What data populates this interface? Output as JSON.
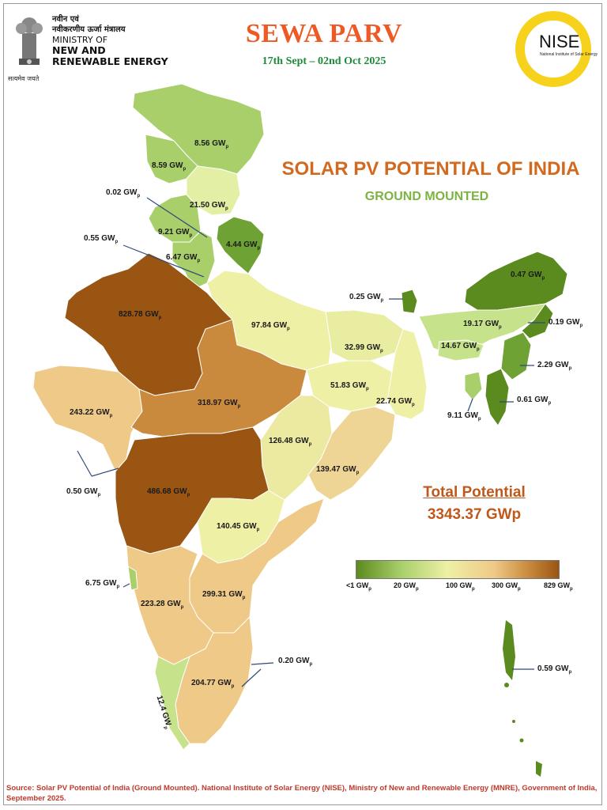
{
  "header": {
    "ministry_hindi_line1": "नवीन एवं",
    "ministry_hindi_line2": "नवीकरणीय ऊर्जा मंत्रालय",
    "ministry_line1": "MINISTRY OF",
    "ministry_line2": "NEW AND",
    "ministry_line3": "RENEWABLE ENERGY",
    "emblem_motto": "सत्यमेव जयते",
    "event_title": "SEWA PARV",
    "event_dates": "17th Sept – 02nd Oct 2025",
    "logo_name": "NISE",
    "logo_subtitle": "National Institute of Solar Energy"
  },
  "map": {
    "title": "SOLAR PV POTENTIAL OF INDIA",
    "subtitle": "GROUND MOUNTED",
    "total_label": "Total Potential",
    "total_value": "3343.37 GWp",
    "unit_subscript": "p",
    "region_labels": [
      "8.56 GW",
      "8.59 GW",
      "0.02 GW",
      "21.50 GW",
      "9.21 GW",
      "4.44 GW",
      "0.55 GW",
      "6.47 GW",
      "828.78 GW",
      "97.84 GW",
      "0.25 GW",
      "0.47 GW",
      "19.17 GW",
      "0.19 GW",
      "14.67 GW",
      "32.99 GW",
      "2.29 GW",
      "51.83 GW",
      "22.74 GW",
      "0.61 GW",
      "9.11 GW",
      "243.22 GW",
      "318.97 GW",
      "126.48 GW",
      "139.47 GW",
      "0.50 GW",
      "486.68 GW",
      "140.45 GW",
      "6.75 GW",
      "223.28 GW",
      "299.31 GW",
      "0.20 GW",
      "204.77 GW",
      "12.4 GW",
      "0.59 GW"
    ],
    "colors": {
      "very_high": "#9a5512",
      "high": "#c98a3e",
      "mid_high": "#efc987",
      "mid": "#eef0a6",
      "low": "#a9cf6b",
      "very_low": "#5b8a1e"
    }
  },
  "legend": {
    "labels": [
      "<1 GW",
      "20 GW",
      "100 GW",
      "300 GW",
      "829 GW"
    ]
  },
  "footer": {
    "source": "Source: Solar PV Potential of India (Ground Mounted). National Institute of Solar Energy (NISE), Ministry of New and Renewable Energy (MNRE), Government of India, September 2025."
  }
}
